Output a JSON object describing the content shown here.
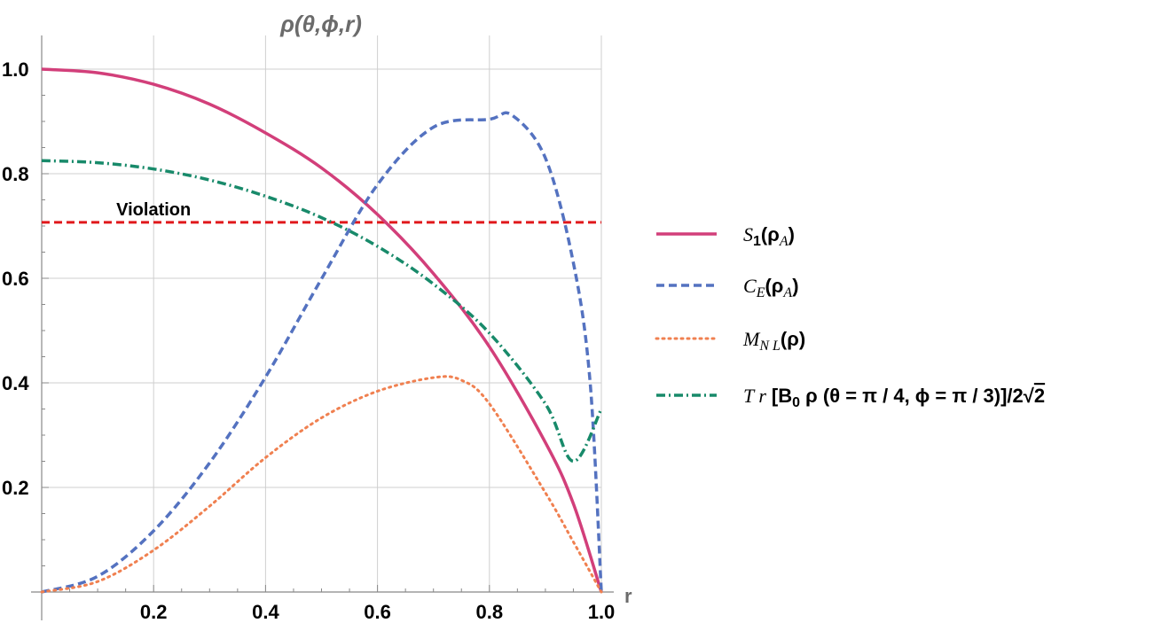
{
  "chart_data": {
    "type": "line",
    "title": "ρ(θ,ϕ,r)",
    "xlabel": "r",
    "ylabel": "",
    "xlim": [
      0,
      1.0
    ],
    "ylim": [
      0,
      1.0
    ],
    "x_ticks": [
      "0.2",
      "0.4",
      "0.6",
      "0.8",
      "1.0"
    ],
    "y_ticks": [
      "0.2",
      "0.4",
      "0.6",
      "0.8",
      "1.0"
    ],
    "grid": true,
    "legend_position": "right",
    "annotations": [
      {
        "text": "Violation",
        "x": 0.2,
        "y": 0.707
      }
    ],
    "series": [
      {
        "name": "S1(ρA)",
        "color": "#d23f7a",
        "style": "solid",
        "x": [
          0,
          0.1,
          0.2,
          0.3,
          0.4,
          0.5,
          0.6,
          0.7,
          0.8,
          0.9,
          0.95,
          1.0
        ],
        "y": [
          1.0,
          0.993,
          0.971,
          0.933,
          0.878,
          0.811,
          0.722,
          0.609,
          0.469,
          0.286,
          0.169,
          0.0
        ]
      },
      {
        "name": "CE(ρA)",
        "color": "#5472c0",
        "style": "dashed",
        "x": [
          0,
          0.1,
          0.2,
          0.3,
          0.4,
          0.5,
          0.6,
          0.7,
          0.8,
          0.84,
          0.9,
          0.95,
          0.98,
          1.0
        ],
        "y": [
          0.0,
          0.03,
          0.117,
          0.247,
          0.411,
          0.599,
          0.779,
          0.889,
          0.904,
          0.912,
          0.83,
          0.63,
          0.4,
          0.0
        ]
      },
      {
        "name": "MNL(ρ)",
        "color": "#f08050",
        "style": "dotted",
        "x": [
          0,
          0.1,
          0.2,
          0.3,
          0.4,
          0.5,
          0.6,
          0.7,
          0.75,
          0.8,
          0.9,
          0.95,
          1.0
        ],
        "y": [
          0.0,
          0.02,
          0.08,
          0.164,
          0.257,
          0.333,
          0.384,
          0.41,
          0.405,
          0.36,
          0.19,
          0.096,
          0.0
        ]
      },
      {
        "name": "Tr[B0 ρ(θ=π/4, ϕ=π/3)]/2√2",
        "color": "#188a6a",
        "style": "dashdot",
        "x": [
          0,
          0.1,
          0.2,
          0.3,
          0.4,
          0.5,
          0.6,
          0.7,
          0.8,
          0.9,
          0.95,
          1.0
        ],
        "y": [
          0.825,
          0.821,
          0.809,
          0.788,
          0.757,
          0.716,
          0.661,
          0.589,
          0.495,
          0.36,
          0.25,
          0.35
        ]
      }
    ]
  },
  "legend": {
    "s1_main": "S",
    "s1_sub": "1",
    "s1_arg": "(ρ",
    "s1_argsub": "A",
    "s1_close": ")",
    "ce_main": "C",
    "ce_sub": "E",
    "ce_arg": "(ρ",
    "ce_argsub": "A",
    "ce_close": ")",
    "mnl_main": "M",
    "mnl_sub": "N L",
    "mnl_arg": "(ρ)",
    "tr_main": "T r",
    "tr_rest": "[B",
    "tr_sub": "0",
    "tr_tail": " ρ (θ = π / 4, ϕ = π / 3)]/2",
    "tr_sqrt": "2"
  }
}
